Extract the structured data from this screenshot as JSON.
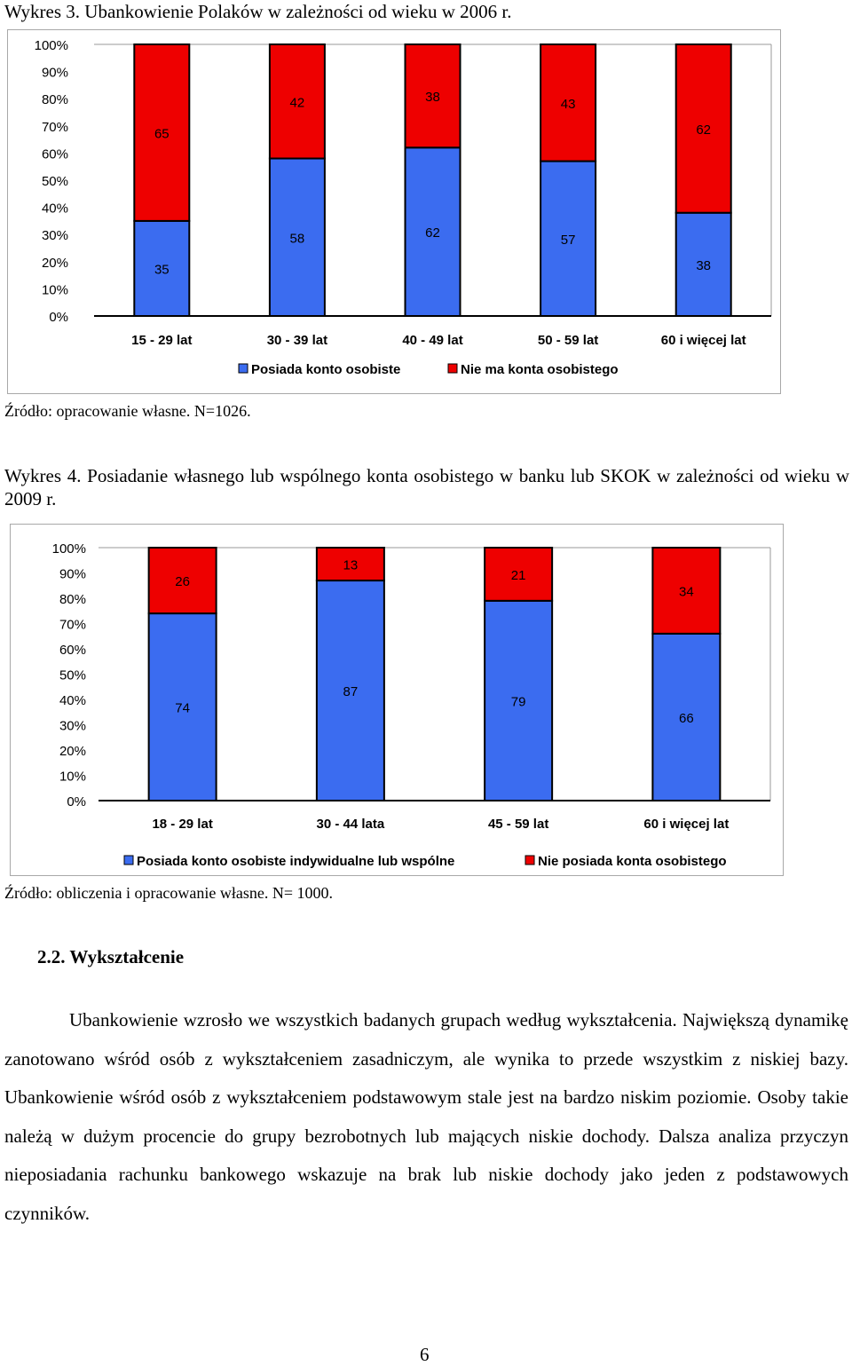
{
  "chart1_caption": "Wykres 3. Ubankowienie Polaków w zależności od wieku w 2006 r.",
  "chart1_source": "Źródło: opracowanie własne. N=1026.",
  "chart2_caption": "Wykres 4. Posiadanie własnego lub wspólnego konta osobistego w banku lub SKOK w zależności od wieku w 2009 r.",
  "chart2_source": "Źródło: obliczenia i opracowanie własne. N= 1000.",
  "section_heading": "2.2. Wykształcenie",
  "paragraph": "Ubankowienie wzrosło we wszystkich badanych grupach według wykształcenia. Największą dynamikę zanotowano wśród osób z wykształceniem zasadniczym, ale wynika to przede wszystkim z niskiej bazy. Ubankowienie wśród osób z wykształceniem podstawowym stale jest na bardzo niskim poziomie. Osoby takie należą w dużym procencie do grupy bezrobotnych lub mających niskie dochody. Dalsza analiza przyczyn nieposiadania rachunku bankowego wskazuje na brak lub niskie dochody jako jeden z podstawowych czynników.",
  "page_number": "6",
  "colors": {
    "blue": "#3b6cf0",
    "red": "#ee0000"
  },
  "chart_data": [
    {
      "type": "bar",
      "stacked": true,
      "categories": [
        "15 - 29 lat",
        "30 - 39 lat",
        "40 - 49 lat",
        "50 - 59 lat",
        "60 i więcej lat"
      ],
      "series": [
        {
          "name": "Posiada konto osobiste",
          "values": [
            35,
            58,
            62,
            57,
            38
          ],
          "color": "#3b6cf0"
        },
        {
          "name": "Nie ma konta osobistego",
          "values": [
            65,
            42,
            38,
            43,
            62
          ],
          "color": "#ee0000"
        }
      ],
      "y_ticks": [
        "0%",
        "10%",
        "20%",
        "30%",
        "40%",
        "50%",
        "60%",
        "70%",
        "80%",
        "90%",
        "100%"
      ],
      "ylim": [
        0,
        100
      ],
      "legend": "bottom",
      "grid": false
    },
    {
      "type": "bar",
      "stacked": true,
      "categories": [
        "18 - 29 lat",
        "30 - 44 lata",
        "45 - 59 lat",
        "60 i więcej lat"
      ],
      "series": [
        {
          "name": "Posiada konto osobiste indywidualne lub wspólne",
          "values": [
            74,
            87,
            79,
            66
          ],
          "color": "#3b6cf0"
        },
        {
          "name": "Nie posiada konta osobistego",
          "values": [
            26,
            13,
            21,
            34
          ],
          "color": "#ee0000"
        }
      ],
      "y_ticks": [
        "0%",
        "10%",
        "20%",
        "30%",
        "40%",
        "50%",
        "60%",
        "70%",
        "80%",
        "90%",
        "100%"
      ],
      "ylim": [
        0,
        100
      ],
      "legend": "bottom",
      "grid": false
    }
  ]
}
